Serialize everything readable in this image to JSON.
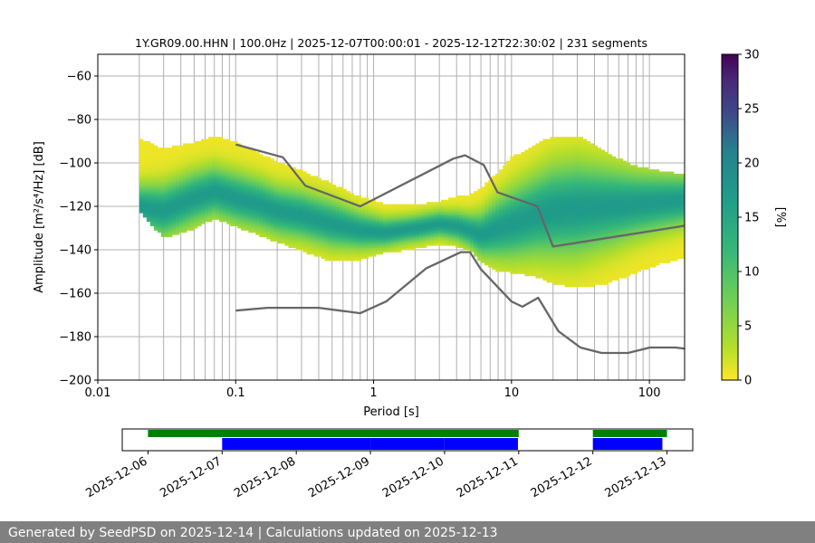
{
  "chart_data": {
    "type": "heatmap",
    "title": "1Y.GR09.00.HHN | 100.0Hz | 2025-12-07T00:00:01 - 2025-12-12T22:30:02 | 231 segments",
    "xlabel": "Period [s]",
    "ylabel": "Amplitude [m²/s⁴/Hz] [dB]",
    "x_scale": "log",
    "xlim": [
      0.01,
      180
    ],
    "ylim": [
      -200,
      -50
    ],
    "x_ticks": [
      {
        "value": 0.01,
        "label": "0.01"
      },
      {
        "value": 0.1,
        "label": "0.1"
      },
      {
        "value": 1,
        "label": "1"
      },
      {
        "value": 10,
        "label": "10"
      },
      {
        "value": 100,
        "label": "100"
      }
    ],
    "y_ticks": [
      {
        "value": -60,
        "label": "−60"
      },
      {
        "value": -80,
        "label": "−80"
      },
      {
        "value": -100,
        "label": "−100"
      },
      {
        "value": -120,
        "label": "−120"
      },
      {
        "value": -140,
        "label": "−140"
      },
      {
        "value": -160,
        "label": "−160"
      },
      {
        "value": -180,
        "label": "−180"
      },
      {
        "value": -200,
        "label": "−200"
      }
    ],
    "grid": true,
    "colormap": "viridis_r",
    "colorbar": {
      "label": "[%]",
      "range": [
        0,
        30
      ],
      "ticks": [
        {
          "value": 0,
          "label": "0"
        },
        {
          "value": 5,
          "label": "5"
        },
        {
          "value": 10,
          "label": "10"
        },
        {
          "value": 15,
          "label": "15"
        },
        {
          "value": 20,
          "label": "20"
        },
        {
          "value": 25,
          "label": "25"
        },
        {
          "value": 30,
          "label": "30"
        }
      ]
    },
    "psd_mode": {
      "period": [
        0.02,
        0.03,
        0.05,
        0.07,
        0.1,
        0.15,
        0.2,
        0.3,
        0.5,
        0.8,
        1.2,
        2,
        3,
        4,
        5,
        6,
        8,
        10,
        15,
        20,
        30,
        50,
        80,
        120,
        180
      ],
      "db": [
        -120,
        -122,
        -116,
        -113,
        -116,
        -119,
        -122,
        -124,
        -128,
        -131,
        -132,
        -130,
        -128,
        -129,
        -131,
        -133,
        -130,
        -128,
        -124,
        -122,
        -121,
        -120,
        -119,
        -118,
        -117
      ]
    },
    "psd_envelope": {
      "period": [
        0.02,
        0.03,
        0.05,
        0.07,
        0.1,
        0.15,
        0.2,
        0.3,
        0.5,
        0.8,
        1.2,
        2,
        3,
        4,
        5,
        6,
        8,
        10,
        15,
        20,
        30,
        50,
        80,
        120,
        180
      ],
      "upper_db": [
        -89,
        -94,
        -91,
        -88,
        -91,
        -96,
        -100,
        -104,
        -110,
        -116,
        -119,
        -120,
        -118,
        -116,
        -115,
        -112,
        -105,
        -98,
        -92,
        -88,
        -88,
        -96,
        -102,
        -104,
        -106
      ],
      "lower_db": [
        -122,
        -134,
        -130,
        -125,
        -129,
        -133,
        -136,
        -140,
        -145,
        -144,
        -141,
        -139,
        -137,
        -138,
        -140,
        -145,
        -150,
        -150,
        -152,
        -155,
        -157,
        -155,
        -150,
        -146,
        -143
      ]
    },
    "noise_models": [
      {
        "period": [
          0.1,
          0.22,
          0.32,
          0.8,
          3.8,
          4.6,
          6.3,
          7.9,
          15.4,
          20,
          354
        ],
        "db": [
          -91.5,
          -97.4,
          -110.5,
          -120,
          -98,
          -96.5,
          -101,
          -113.5,
          -120,
          -138.5,
          -126
        ]
      },
      {
        "period": [
          0.1,
          0.17,
          0.4,
          0.8,
          1.24,
          2.4,
          4.3,
          5,
          6,
          10,
          12,
          15.6,
          21.9,
          31.6,
          45,
          70,
          101,
          154,
          180
        ],
        "db": [
          -168,
          -166.7,
          -166.7,
          -169.2,
          -163.7,
          -148.6,
          -141.1,
          -141.1,
          -149,
          -163.8,
          -166.2,
          -162.1,
          -177.5,
          -185,
          -187.5,
          -187.5,
          -185,
          -185,
          -185.5
        ]
      }
    ],
    "time_axis": {
      "labels": [
        "2025-12-06",
        "2025-12-07",
        "2025-12-08",
        "2025-12-09",
        "2025-12-10",
        "2025-12-11",
        "2025-12-12",
        "2025-12-13"
      ],
      "range": [
        "2025-12-05T15:40",
        "2025-12-13T08:20"
      ]
    },
    "coverage": {
      "green": [
        [
          "2025-12-06T00:00",
          "2025-12-11T00:00"
        ],
        [
          "2025-12-12T00:00",
          "2025-12-13T00:00"
        ]
      ],
      "blue": [
        [
          "2025-12-07T00:00",
          "2025-12-08T23:59"
        ],
        [
          "2025-12-09T00:00",
          "2025-12-09T23:59"
        ],
        [
          "2025-12-10T00:00",
          "2025-12-10T23:45"
        ],
        [
          "2025-12-12T00:00",
          "2025-12-12T22:30"
        ]
      ]
    }
  },
  "colors": {
    "line": "#666666",
    "grid": "#b0b0b0",
    "coverage_green": "#008000",
    "coverage_blue": "#0000ff",
    "footer_bg": "#808080"
  },
  "footer": {
    "text": "Generated by SeedPSD on 2025-12-14 | Calculations updated on 2025-12-13"
  }
}
